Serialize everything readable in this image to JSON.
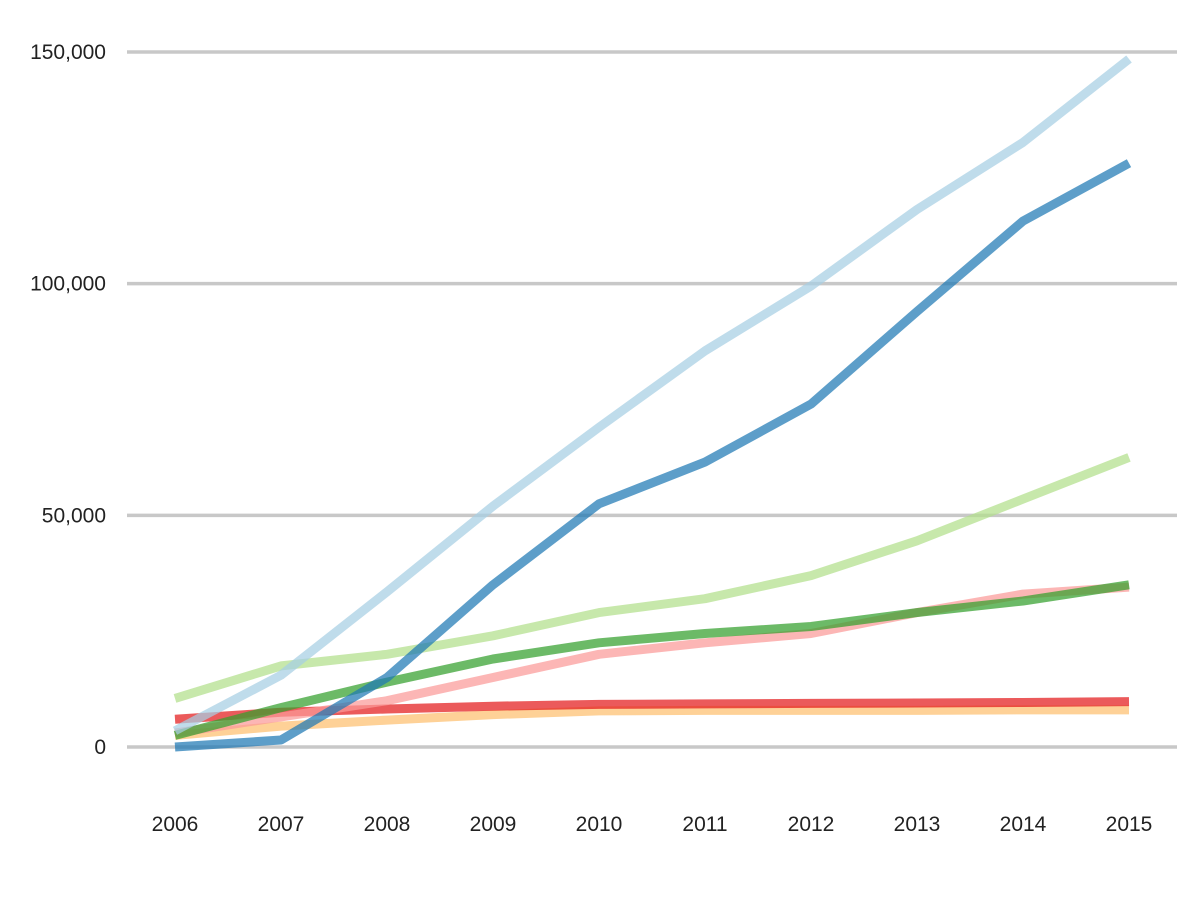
{
  "chart_data": {
    "type": "line",
    "title": "",
    "xlabel": "",
    "ylabel": "",
    "x": [
      "2006",
      "2007",
      "2008",
      "2009",
      "2010",
      "2011",
      "2012",
      "2013",
      "2014",
      "2015"
    ],
    "ylim": [
      0,
      150000
    ],
    "yticks": [
      0,
      50000,
      100000,
      150000
    ],
    "ytick_labels": [
      "0",
      "50,000",
      "100,000",
      "150,000"
    ],
    "grid": true,
    "legend": "none",
    "series": [
      {
        "color": "#fdbf6f",
        "values": [
          2500,
          4500,
          5800,
          7000,
          7800,
          7900,
          7900,
          7900,
          8000,
          8000
        ]
      },
      {
        "color": "#e31a1c",
        "values": [
          6000,
          7500,
          8200,
          8800,
          9200,
          9300,
          9400,
          9500,
          9600,
          9800
        ]
      },
      {
        "color": "#fb9a99",
        "values": [
          3000,
          6500,
          10000,
          15000,
          20000,
          22500,
          24500,
          29000,
          33000,
          34500
        ]
      },
      {
        "color": "#33a02c",
        "values": [
          2500,
          8500,
          14000,
          19000,
          22500,
          24500,
          26000,
          29000,
          31500,
          35000
        ]
      },
      {
        "color": "#b2df8a",
        "values": [
          10500,
          17500,
          20000,
          24000,
          29000,
          32000,
          37000,
          44500,
          53500,
          62500
        ]
      },
      {
        "color": "#1f78b4",
        "values": [
          0,
          1500,
          15000,
          35000,
          52500,
          61500,
          74000,
          94000,
          113500,
          126000
        ]
      },
      {
        "color": "#a6cee3",
        "values": [
          3500,
          15500,
          33500,
          52000,
          69000,
          85500,
          99500,
          116000,
          130500,
          148500
        ]
      }
    ]
  }
}
